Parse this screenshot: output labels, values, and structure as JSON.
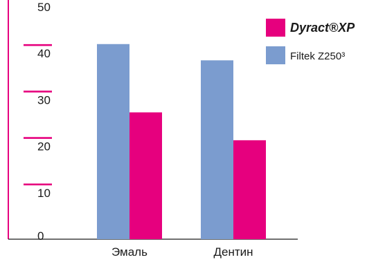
{
  "chart_data": {
    "type": "bar",
    "categories": [
      "Эмаль",
      "Дентин"
    ],
    "series": [
      {
        "name": "Filtek Z250³",
        "values": [
          42,
          38.5
        ],
        "color": "#7b9ccf"
      },
      {
        "name": "Dyract®XP",
        "values": [
          27.3,
          21.3
        ],
        "color": "#e6007e"
      }
    ],
    "yticks": [
      "50",
      "40",
      "30",
      "20",
      "10",
      "0"
    ],
    "ylim": [
      0,
      50
    ],
    "grid": false,
    "legend_placement": "top-right",
    "axis_color": "#e6007e",
    "baseline_color": "#1a1a1a"
  },
  "legend": {
    "items": [
      {
        "name": "Dyract®XP",
        "color": "#e6007e"
      },
      {
        "name": "Filtek Z250³",
        "color": "#7b9ccf"
      }
    ]
  }
}
